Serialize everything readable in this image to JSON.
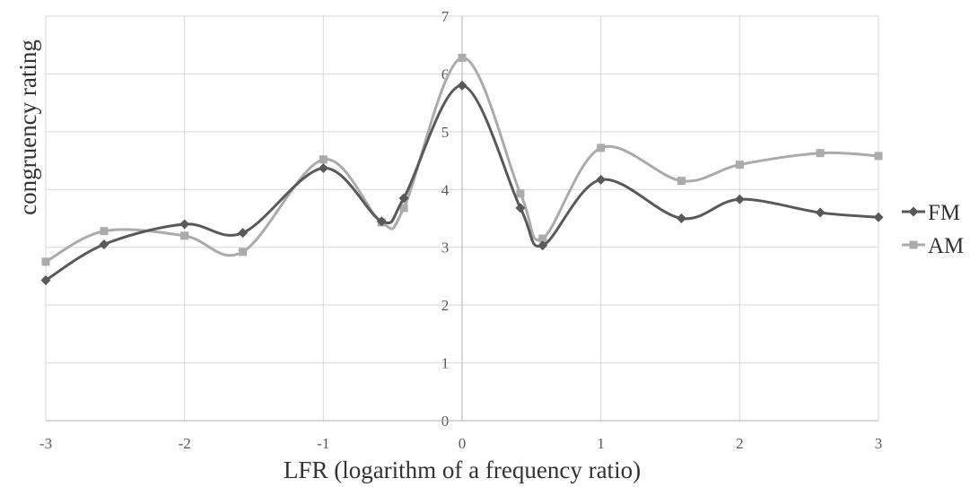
{
  "chart_data": {
    "type": "line",
    "xlabel": "LFR (logarithm of a frequency ratio)",
    "ylabel": "congruency rating",
    "xlim": [
      -3,
      3
    ],
    "ylim": [
      0,
      7
    ],
    "xticks": [
      "-3",
      "-2",
      "-1",
      "0",
      "1",
      "2",
      "3"
    ],
    "yticks": [
      "0",
      "1",
      "2",
      "3",
      "4",
      "5",
      "6",
      "7"
    ],
    "grid": true,
    "legend_position": "right",
    "series": [
      {
        "name": "FM",
        "color": "#595959",
        "marker": "diamond",
        "x": [
          -3,
          -2.58,
          -2,
          -1.58,
          -1,
          -0.58,
          -0.42,
          0,
          0.42,
          0.58,
          1,
          1.58,
          2,
          2.58,
          3
        ],
        "y": [
          2.43,
          3.05,
          3.4,
          3.25,
          4.37,
          3.45,
          3.85,
          5.8,
          3.68,
          3.03,
          4.17,
          3.5,
          3.83,
          3.6,
          3.52
        ]
      },
      {
        "name": "AM",
        "color": "#ababab",
        "marker": "square",
        "x": [
          -3,
          -2.58,
          -2,
          -1.58,
          -1,
          -0.58,
          -0.42,
          0,
          0.42,
          0.58,
          1,
          1.58,
          2,
          2.58,
          3
        ],
        "y": [
          2.75,
          3.28,
          3.2,
          2.92,
          4.52,
          3.43,
          3.68,
          6.28,
          3.93,
          3.15,
          4.72,
          4.15,
          4.43,
          4.63,
          4.58
        ]
      }
    ]
  }
}
